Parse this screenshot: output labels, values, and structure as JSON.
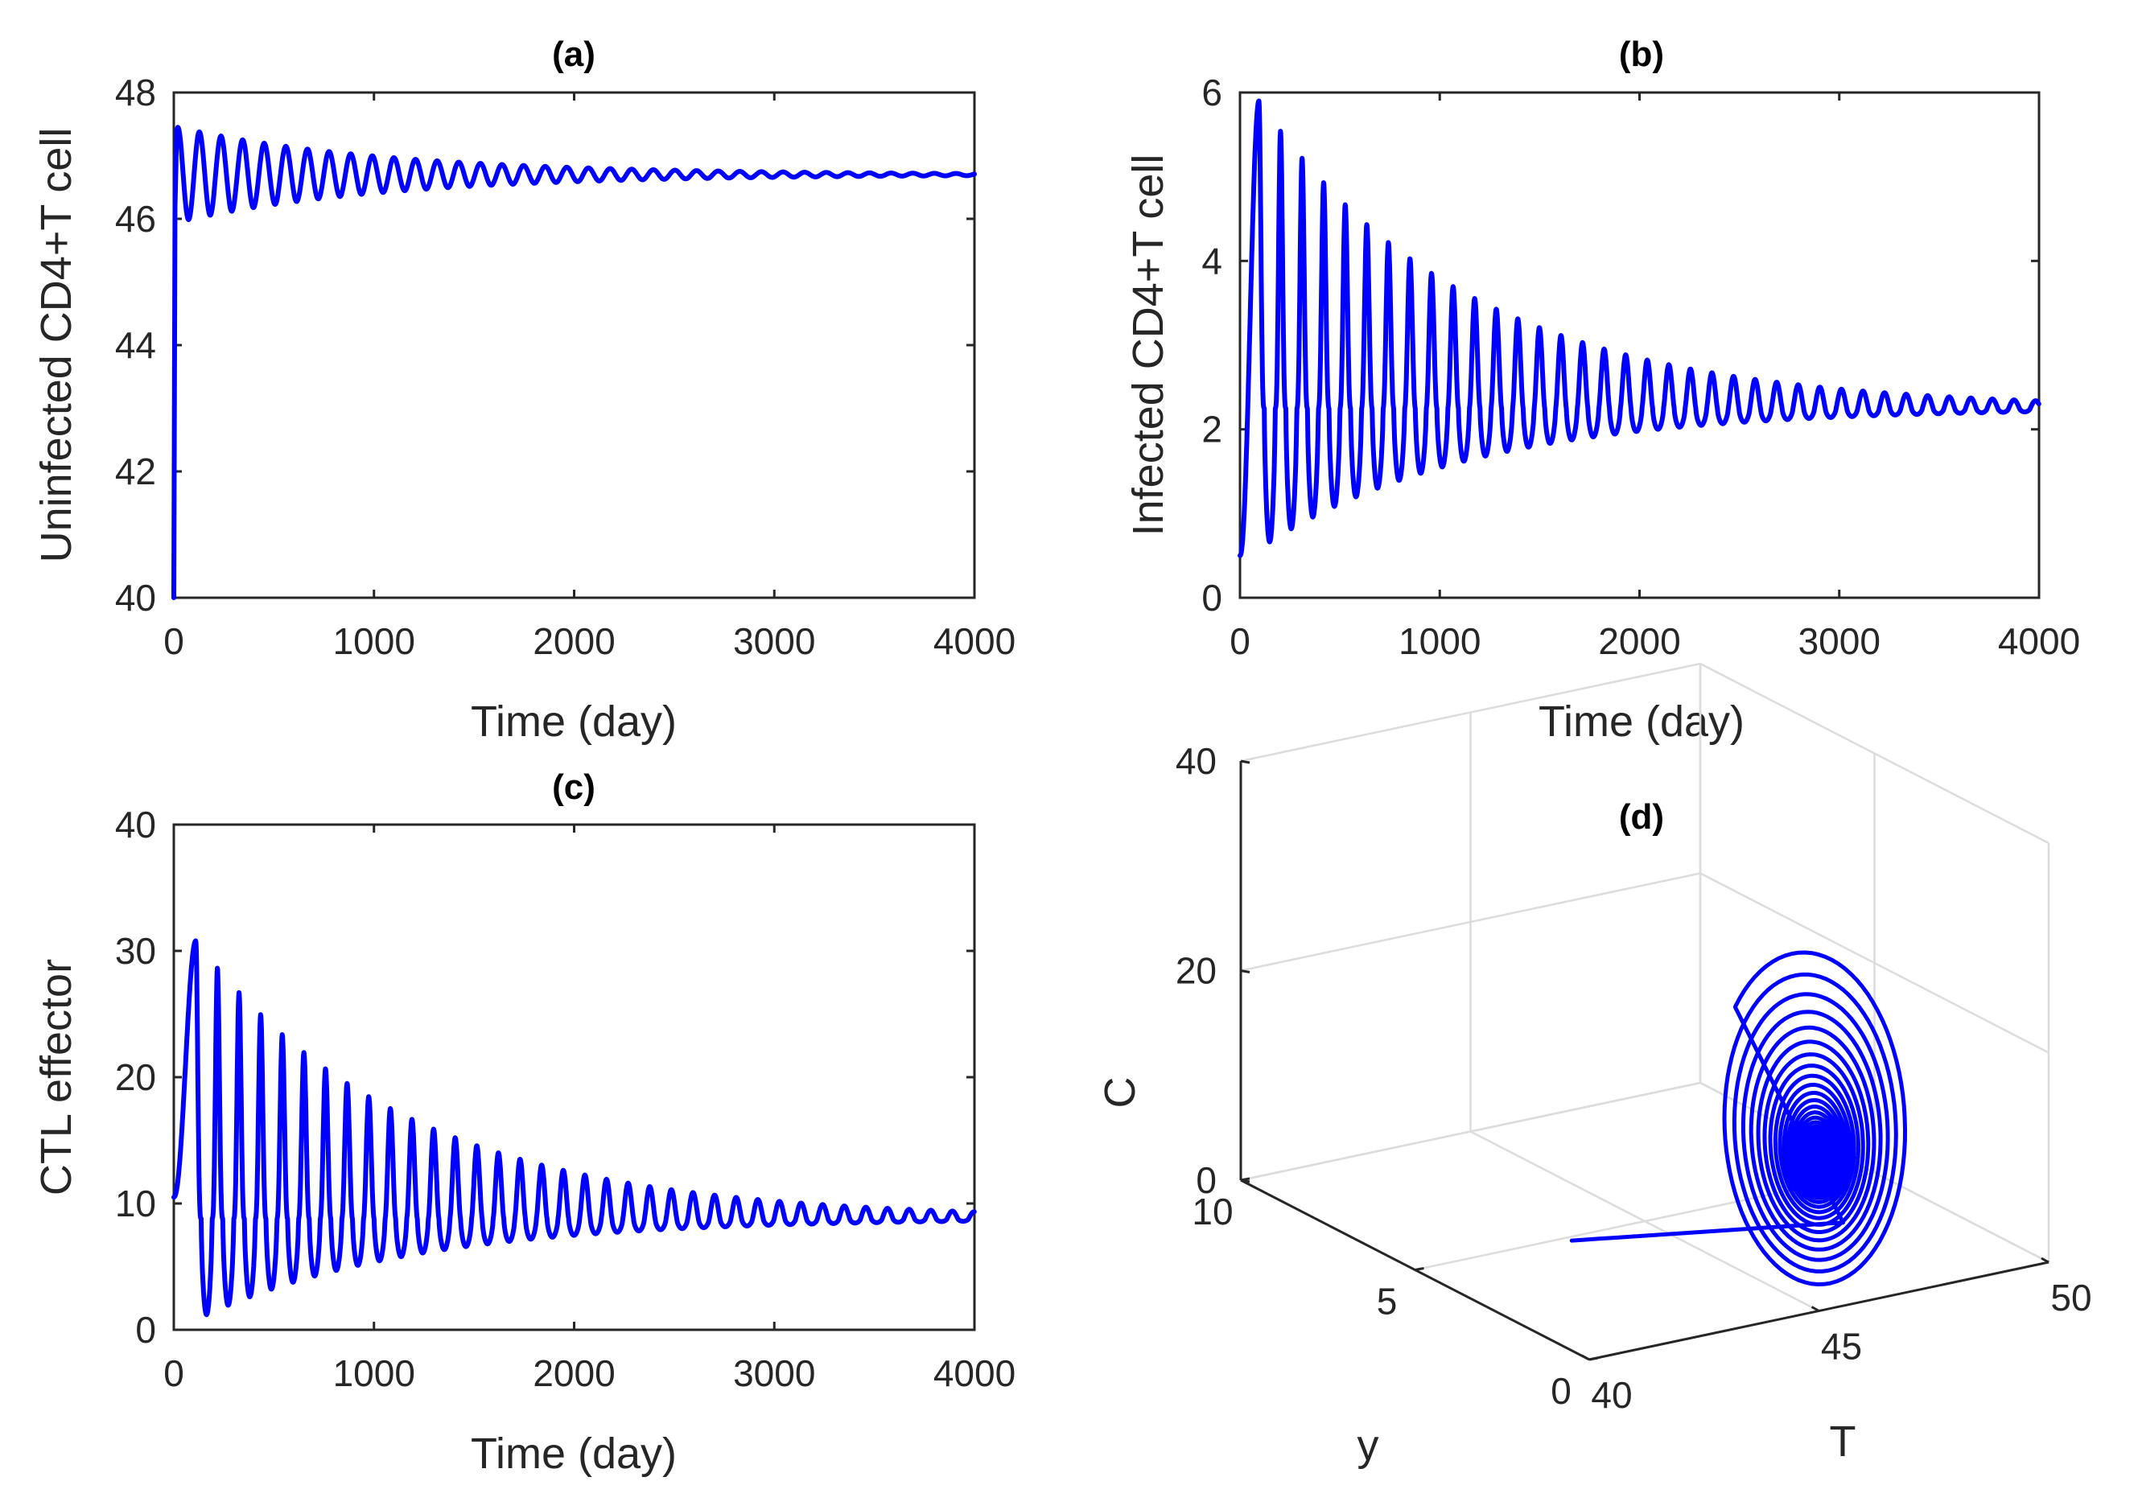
{
  "chart_data": [
    {
      "panel": "a",
      "type": "line",
      "title": "(a)",
      "xlabel": "Time (day)",
      "ylabel": "Uninfected CD4+T cell",
      "xlim": [
        0,
        4000
      ],
      "ylim": [
        40,
        48
      ],
      "xticks": [
        "0",
        "1000",
        "2000",
        "3000",
        "4000"
      ],
      "yticks": [
        "40",
        "42",
        "44",
        "46",
        "48"
      ],
      "grid": false,
      "series": [
        {
          "color": "#0000ff",
          "start": 40,
          "equilibrium": 46.7,
          "initial_amplitude": 0.75,
          "period_days": 108,
          "decay_days": 1050
        }
      ]
    },
    {
      "panel": "b",
      "type": "line",
      "title": "(b)",
      "xlabel": "Time (day)",
      "ylabel": "Infected CD4+T cell",
      "xlim": [
        0,
        4000
      ],
      "ylim": [
        0,
        6
      ],
      "xticks": [
        "0",
        "1000",
        "2000",
        "3000",
        "4000"
      ],
      "yticks": [
        "0",
        "2",
        "4",
        "6"
      ],
      "grid": false,
      "series": [
        {
          "color": "#0000ff",
          "start": 0.5,
          "first_peak": 5.9,
          "first_peak_day": 95,
          "first_trough": 0.58,
          "equilibrium": 2.25,
          "period_days": 108,
          "decay_days": 1050
        }
      ]
    },
    {
      "panel": "c",
      "type": "line",
      "title": "(c)",
      "xlabel": "Time (day)",
      "ylabel": "CTL effector",
      "xlim": [
        0,
        4000
      ],
      "ylim": [
        0,
        40
      ],
      "xticks": [
        "0",
        "1000",
        "2000",
        "3000",
        "4000"
      ],
      "yticks": [
        "0",
        "10",
        "20",
        "30",
        "40"
      ],
      "grid": false,
      "series": [
        {
          "color": "#0000ff",
          "start": 10.5,
          "first_peak": 30.8,
          "first_peak_day": 110,
          "first_trough": 0.8,
          "equilibrium": 8.8,
          "period_days": 108,
          "decay_days": 1050
        }
      ]
    },
    {
      "panel": "d",
      "type": "line3d",
      "title": "(d)",
      "xlabel": "T",
      "ylabel": "y",
      "zlabel": "C",
      "xlim": [
        40,
        50
      ],
      "ylim": [
        0,
        10
      ],
      "zlim": [
        0,
        40
      ],
      "xticks": [
        "40",
        "45",
        "50"
      ],
      "yticks": [
        "0",
        "5",
        "10"
      ],
      "zticks": [
        "0",
        "20",
        "40"
      ],
      "grid": true,
      "series": [
        {
          "color": "#0000ff",
          "start": [
            40,
            0.5,
            10.5
          ],
          "equilibrium": [
            46.7,
            2.25,
            8.8
          ]
        }
      ]
    }
  ]
}
